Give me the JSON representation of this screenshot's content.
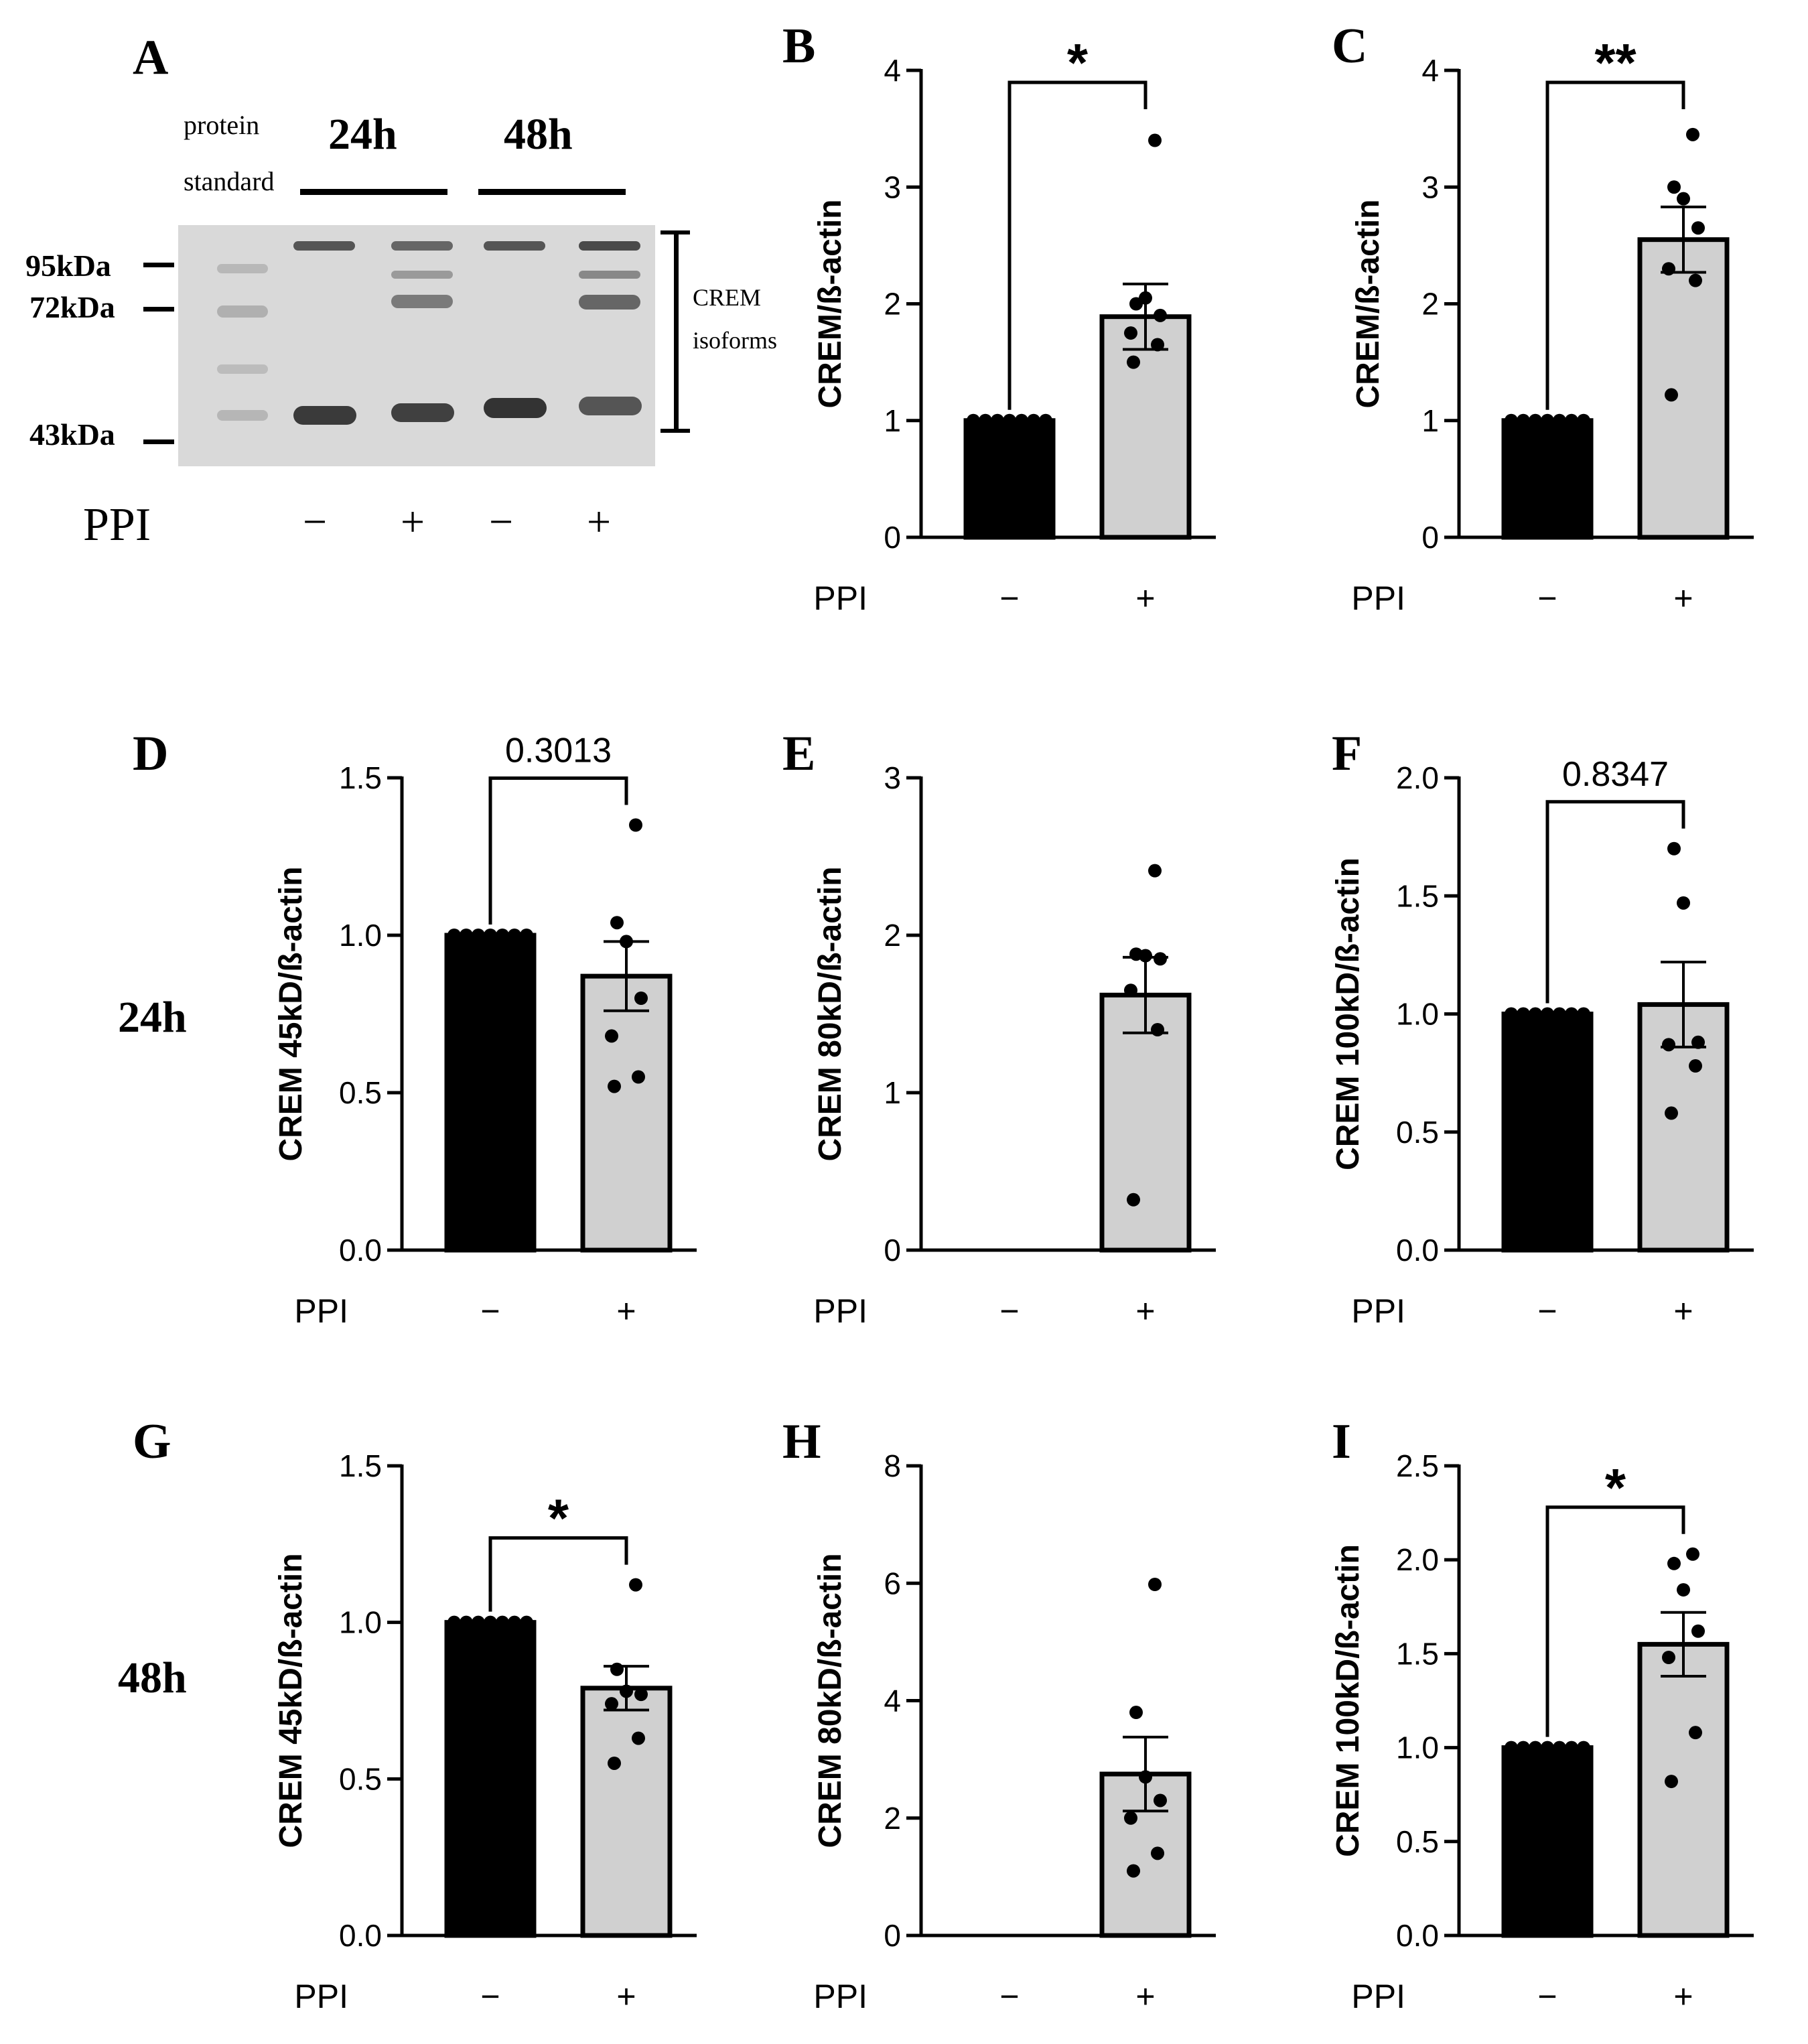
{
  "figure": {
    "row_labels": [
      "24h",
      "48h"
    ]
  },
  "blot": {
    "panel_letter": "A",
    "protein_standard_label_1": "protein",
    "protein_standard_label_2": "standard",
    "time_24": "24h",
    "time_48": "48h",
    "markers": [
      "95kDa",
      "72kDa",
      "43kDa"
    ],
    "bracket_label_1": "CREM",
    "bracket_label_2": "isoforms",
    "ppi_label": "PPI",
    "ppi_signs": [
      "−",
      "+",
      "−",
      "+"
    ]
  },
  "chart_data": [
    {
      "id": "B",
      "type": "bar",
      "title": "",
      "xlabel": "PPI",
      "ylabel": "CREM/ß-actin",
      "categories": [
        "−",
        "+"
      ],
      "ylim": [
        0,
        4
      ],
      "yticks": [
        0,
        1,
        2,
        3,
        4
      ],
      "tick_decimals": 0,
      "values": [
        1.0,
        1.89
      ],
      "sem": [
        0,
        0.28
      ],
      "points": [
        [
          1,
          1,
          1,
          1,
          1,
          1,
          1
        ],
        [
          1.5,
          1.65,
          1.75,
          1.9,
          2.05,
          2.0,
          3.4
        ]
      ],
      "significance": "*",
      "bracket": true
    },
    {
      "id": "C",
      "type": "bar",
      "title": "",
      "xlabel": "PPI",
      "ylabel": "CREM/ß-actin",
      "categories": [
        "−",
        "+"
      ],
      "ylim": [
        0,
        4
      ],
      "yticks": [
        0,
        1,
        2,
        3,
        4
      ],
      "tick_decimals": 0,
      "values": [
        1.0,
        2.55
      ],
      "sem": [
        0,
        0.28
      ],
      "points": [
        [
          1,
          1,
          1,
          1,
          1,
          1,
          1
        ],
        [
          1.22,
          2.2,
          2.3,
          2.65,
          2.9,
          3.0,
          3.45
        ]
      ],
      "significance": "**",
      "bracket": true
    },
    {
      "id": "D",
      "type": "bar",
      "title": "",
      "xlabel": "PPI",
      "ylabel": "CREM 45kD/ß-actin",
      "categories": [
        "−",
        "+"
      ],
      "ylim": [
        0,
        1.5
      ],
      "yticks": [
        0,
        0.5,
        1.0,
        1.5
      ],
      "tick_decimals": 1,
      "values": [
        1.0,
        0.87
      ],
      "sem": [
        0,
        0.11
      ],
      "points": [
        [
          1,
          1,
          1,
          1,
          1,
          1,
          1
        ],
        [
          0.52,
          0.55,
          0.68,
          0.8,
          0.98,
          1.04,
          1.35
        ]
      ],
      "significance": "0.3013",
      "bracket": true
    },
    {
      "id": "E",
      "type": "bar",
      "title": "",
      "xlabel": "PPI",
      "ylabel": "CREM 80kD/ß-actin",
      "categories": [
        "−",
        "+"
      ],
      "ylim": [
        0,
        3
      ],
      "yticks": [
        0,
        1,
        2,
        3
      ],
      "tick_decimals": 0,
      "values": [
        0,
        1.62
      ],
      "sem": [
        0,
        0.24
      ],
      "points": [
        [],
        [
          0.32,
          1.4,
          1.65,
          1.85,
          1.87,
          1.88,
          2.41
        ]
      ],
      "significance": "",
      "bracket": false
    },
    {
      "id": "F",
      "type": "bar",
      "title": "",
      "xlabel": "PPI",
      "ylabel": "CREM 100kD/ß-actin",
      "categories": [
        "−",
        "+"
      ],
      "ylim": [
        0,
        2.0
      ],
      "yticks": [
        0,
        0.5,
        1.0,
        1.5,
        2.0
      ],
      "tick_decimals": 1,
      "values": [
        1.0,
        1.04
      ],
      "sem": [
        0,
        0.18
      ],
      "points": [
        [
          1,
          1,
          1,
          1,
          1,
          1,
          1
        ],
        [
          0.58,
          0.78,
          0.87,
          0.88,
          1.47,
          1.7
        ]
      ],
      "significance": "0.8347",
      "bracket": true
    },
    {
      "id": "G",
      "type": "bar",
      "title": "",
      "xlabel": "PPI",
      "ylabel": "CREM 45kD/ß-actin",
      "categories": [
        "−",
        "+"
      ],
      "ylim": [
        0,
        1.5
      ],
      "yticks": [
        0,
        0.5,
        1.0,
        1.5
      ],
      "tick_decimals": 1,
      "values": [
        1.0,
        0.79
      ],
      "sem": [
        0,
        0.07
      ],
      "points": [
        [
          1,
          1,
          1,
          1,
          1,
          1,
          1
        ],
        [
          0.55,
          0.63,
          0.74,
          0.77,
          0.78,
          0.85,
          1.12
        ]
      ],
      "significance": "*",
      "bracket": true
    },
    {
      "id": "H",
      "type": "bar",
      "title": "",
      "xlabel": "PPI",
      "ylabel": "CREM 80kD/ß-actin",
      "categories": [
        "−",
        "+"
      ],
      "ylim": [
        0,
        8
      ],
      "yticks": [
        0,
        2,
        4,
        6,
        8
      ],
      "tick_decimals": 0,
      "values": [
        0,
        2.75
      ],
      "sem": [
        0,
        0.63
      ],
      "points": [
        [],
        [
          1.1,
          1.4,
          2.0,
          2.3,
          2.7,
          3.8,
          5.98
        ]
      ],
      "significance": "",
      "bracket": false
    },
    {
      "id": "I",
      "type": "bar",
      "title": "",
      "xlabel": "PPI",
      "ylabel": "CREM 100kD/ß-actin",
      "categories": [
        "−",
        "+"
      ],
      "ylim": [
        0,
        2.5
      ],
      "yticks": [
        0,
        0.5,
        1.0,
        1.5,
        2.0,
        2.5
      ],
      "tick_decimals": 1,
      "values": [
        1.0,
        1.55
      ],
      "sem": [
        0,
        0.17
      ],
      "points": [
        [
          1,
          1,
          1,
          1,
          1,
          1,
          1
        ],
        [
          0.82,
          1.08,
          1.48,
          1.62,
          1.84,
          1.98,
          2.03
        ]
      ],
      "significance": "*",
      "bracket": true
    }
  ],
  "colors": {
    "control_bar": "#000000",
    "ppi_bar": "#d0d0d0",
    "axis": "#000000",
    "blot_bg": "#d9d9d9"
  }
}
